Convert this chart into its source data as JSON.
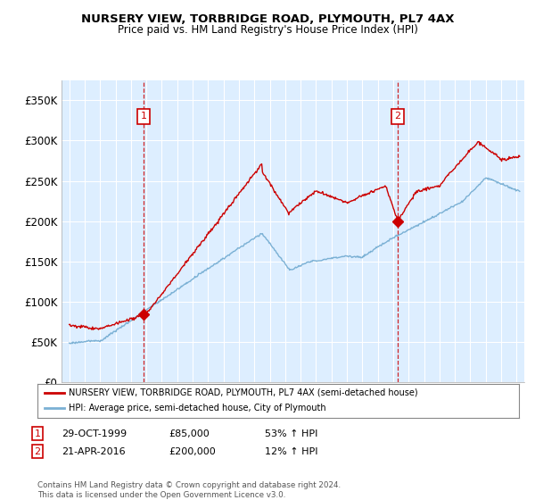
{
  "title": "NURSERY VIEW, TORBRIDGE ROAD, PLYMOUTH, PL7 4AX",
  "subtitle": "Price paid vs. HM Land Registry's House Price Index (HPI)",
  "legend_line1": "NURSERY VIEW, TORBRIDGE ROAD, PLYMOUTH, PL7 4AX (semi-detached house)",
  "legend_line2": "HPI: Average price, semi-detached house, City of Plymouth",
  "footnote": "Contains HM Land Registry data © Crown copyright and database right 2024.\nThis data is licensed under the Open Government Licence v3.0.",
  "transaction1_date": "29-OCT-1999",
  "transaction1_price": "£85,000",
  "transaction1_hpi": "53% ↑ HPI",
  "transaction2_date": "21-APR-2016",
  "transaction2_price": "£200,000",
  "transaction2_hpi": "12% ↑ HPI",
  "price_color": "#cc0000",
  "hpi_color": "#7ab0d4",
  "marker1_x": 1999.83,
  "marker1_y": 85000,
  "marker2_x": 2016.3,
  "marker2_y": 200000,
  "ylim_min": 0,
  "ylim_max": 375000,
  "yticks": [
    0,
    50000,
    100000,
    150000,
    200000,
    250000,
    300000,
    350000
  ],
  "ytick_labels": [
    "£0",
    "£50K",
    "£100K",
    "£150K",
    "£200K",
    "£250K",
    "£300K",
    "£350K"
  ],
  "xlim_min": 1994.5,
  "xlim_max": 2024.5,
  "background_color": "#ffffff",
  "plot_bg_color": "#ddeeff",
  "grid_color": "#ffffff"
}
